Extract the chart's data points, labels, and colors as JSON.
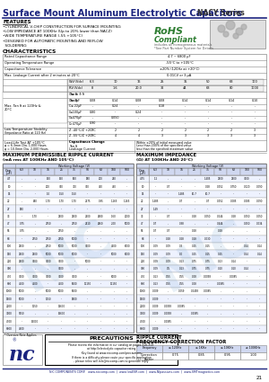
{
  "title_main": "Surface Mount Aluminum Electrolytic Capacitors",
  "title_series": "NACY Series",
  "bg_color": "#ffffff",
  "header_blue": "#1a237e",
  "rohs_green": "#2e7d32",
  "features": [
    "CYLINDRICAL V-CHIP CONSTRUCTION FOR SURFACE MOUNTING",
    "LOW IMPEDANCE AT 100KHz (Up to 20% lower than NACZ)",
    "WIDE TEMPERATURE RANGE (-55 +105°C)",
    "DESIGNED FOR AUTOMATIC MOUNTING AND REFLOW SOLDERING"
  ],
  "char_rows": [
    [
      "Rated Capacitance Range",
      "4.7 ~ 6800 μF"
    ],
    [
      "Operating Temperature Range",
      "-55°C to +105°C"
    ],
    [
      "Capacitance Tolerance",
      "±20% (120Hz at +20°C)"
    ],
    [
      "Max. Leakage Current after 2 minutes at 20°C",
      "0.01CV or 3 μA"
    ]
  ],
  "footer_url": "NIC COMPONENTS CORP.   www.niccomp.com  |  www.lowESR.com  |  www.NIpassives.com  |  www.SMTmagnetics.com",
  "page_num": "21",
  "wv_cols": [
    "6.3",
    "10",
    "16",
    "25",
    "35",
    "50",
    "63",
    "100",
    "500"
  ],
  "ripple_data": [
    [
      "4.7",
      "-",
      "-",
      "150",
      "150",
      "160",
      "180",
      "200",
      "240",
      "-"
    ],
    [
      "10",
      "-",
      "-",
      "200",
      "300",
      "320",
      "350",
      "400",
      "490",
      "-"
    ],
    [
      "15",
      "-",
      "-",
      "1.0",
      "1.50",
      "1.50",
      "-",
      "-",
      "-",
      "-"
    ],
    [
      "22",
      "-",
      "840",
      "1.70",
      "1.70",
      "1.70",
      "2175",
      "0.95",
      "1.165",
      "1.165"
    ],
    [
      "27",
      "180",
      "-",
      "-",
      "-",
      "-",
      "-",
      "-",
      "-",
      "-"
    ],
    [
      "33",
      "-",
      "1.70",
      "-",
      "2500",
      "2500",
      "2100",
      "2680",
      "1.60",
      "2000"
    ],
    [
      "47",
      "0.75",
      "-",
      "2750",
      "-",
      "2750",
      "2410",
      "2660",
      "2.00",
      "5000"
    ],
    [
      "56",
      "0.75",
      "-",
      "-",
      "2750",
      "-",
      "-",
      "-",
      "-",
      "-"
    ],
    [
      "68",
      "-",
      "2750",
      "2750",
      "2750",
      "5000",
      "-",
      "-",
      "-",
      "-"
    ],
    [
      "100",
      "2500",
      "-",
      "2750",
      "5000",
      "5000",
      "3000",
      "-",
      "4000",
      "6000"
    ],
    [
      "150",
      "2500",
      "2500",
      "5000",
      "5000",
      "5000",
      "-",
      "-",
      "5000",
      "8000"
    ],
    [
      "220",
      "2500",
      "3000",
      "3000",
      "3000",
      "-",
      "5000",
      "-",
      "-",
      "-"
    ],
    [
      "300",
      "-",
      "-",
      "-",
      "3000",
      "-",
      "-",
      "-",
      "-",
      "-"
    ],
    [
      "470",
      "3500",
      "3500",
      "3500",
      "3500",
      "3500",
      "-",
      "-",
      "8000",
      "-"
    ],
    [
      "680",
      "4500",
      "4500",
      "-",
      "4500",
      "6500",
      "11150",
      "-",
      "11150",
      "-"
    ],
    [
      "1000",
      "5000",
      "-",
      "5000",
      "5000",
      "6500",
      "-",
      "-",
      "-",
      "-"
    ],
    [
      "1500",
      "5000",
      "-",
      "1150",
      "-",
      "1800",
      "-",
      "-",
      "-",
      "-"
    ],
    [
      "2200",
      "-",
      "1150",
      "-",
      "13600",
      "-",
      "-",
      "-",
      "-",
      "-"
    ],
    [
      "3300",
      "5150",
      "-",
      "-",
      "15600",
      "-",
      "-",
      "-",
      "-",
      "-"
    ],
    [
      "4700",
      "-",
      "15000",
      "-",
      "-",
      "-",
      "-",
      "-",
      "-",
      "-"
    ],
    [
      "6800",
      "7600",
      "-",
      "-",
      "-",
      "-",
      "-",
      "-",
      "-",
      "-"
    ]
  ],
  "imp_data": [
    [
      "4.75",
      "1.2",
      "-",
      "-",
      "-",
      "1.405",
      "2500",
      "2500",
      "3500",
      "-"
    ],
    [
      "10",
      "-",
      "0.7",
      "-",
      "-",
      "0.28",
      "0.052",
      "0.750",
      "0.020",
      "0.090"
    ],
    [
      "15",
      "-",
      "-",
      "1.485",
      "10.7",
      "10.7",
      "-",
      "-",
      "-",
      "-"
    ],
    [
      "22",
      "1.485",
      "-",
      "0.7",
      "-",
      "0.7",
      "0.052",
      "0.085",
      "0.085",
      "0.090"
    ],
    [
      "27",
      "1.49",
      "-",
      "-",
      "-",
      "-",
      "-",
      "-",
      "-",
      "-"
    ],
    [
      "33",
      "-",
      "0.7",
      "-",
      "0.28",
      "0.050",
      "0.044",
      "0.28",
      "0.050",
      "0.050"
    ],
    [
      "47",
      "0.7",
      "-",
      "0.38",
      "-",
      "-",
      "0.444",
      "-",
      "0.250",
      "0.034"
    ],
    [
      "56",
      "0.7",
      "0.7",
      "-",
      "0.28",
      "-",
      "0.28",
      "-",
      "-",
      "-"
    ],
    [
      "68",
      "-",
      "0.28",
      "0.28",
      "0.28",
      "0.030",
      "-",
      "-",
      "-",
      "-"
    ],
    [
      "100",
      "0.09",
      "0.09",
      "0.3",
      "0.15",
      "0.15",
      "-",
      "-",
      "0.24",
      "0.14"
    ],
    [
      "150",
      "0.09",
      "0.09",
      "0.0",
      "0.15",
      "0.15",
      "0.15",
      "-",
      "0.24",
      "0.14"
    ],
    [
      "220",
      "0.09",
      "0.09",
      "0.13",
      "0.75",
      "0.75",
      "0.13",
      "0.14",
      "-",
      "-"
    ],
    [
      "300",
      "0.09",
      "0.5",
      "0.13",
      "0.75",
      "0.75",
      "0.10",
      "0.10",
      "0.14",
      "-"
    ],
    [
      "470",
      "0.13",
      "0.55",
      "0.55",
      "0.08",
      "0.0098",
      "-",
      "0.0085",
      "-",
      "-"
    ],
    [
      "680",
      "0.13",
      "0.55",
      "0.55",
      "0.08",
      "-",
      "0.0085",
      "-",
      "-",
      "-"
    ],
    [
      "1000",
      "0.009",
      "-",
      "0.059",
      "0.0498",
      "0.0085",
      "-",
      "-",
      "-",
      "-"
    ],
    [
      "1500",
      "0.009",
      "-",
      "-",
      "-",
      "-",
      "-",
      "-",
      "-",
      "-"
    ],
    [
      "2200",
      "0.009",
      "0.0098",
      "0.0085",
      "-",
      "-",
      "-",
      "-",
      "-",
      "-"
    ],
    [
      "3300",
      "0.009",
      "0.0098",
      "-",
      "0.0085",
      "-",
      "-",
      "-",
      "-",
      "-"
    ],
    [
      "4700",
      "-",
      "0.0085",
      "-",
      "-",
      "-",
      "-",
      "-",
      "-",
      "-"
    ],
    [
      "6800",
      "0.009",
      "-",
      "-",
      "-",
      "-",
      "-",
      "-",
      "-",
      "-"
    ]
  ],
  "freq_rows": [
    [
      "Frequency",
      "≤ 120Hz",
      "≤ 1KHz",
      "≤ 10KHz",
      "≥ 100KHz"
    ],
    [
      "Correction\nFactor",
      "0.75",
      "0.85",
      "0.95",
      "1.00"
    ]
  ]
}
